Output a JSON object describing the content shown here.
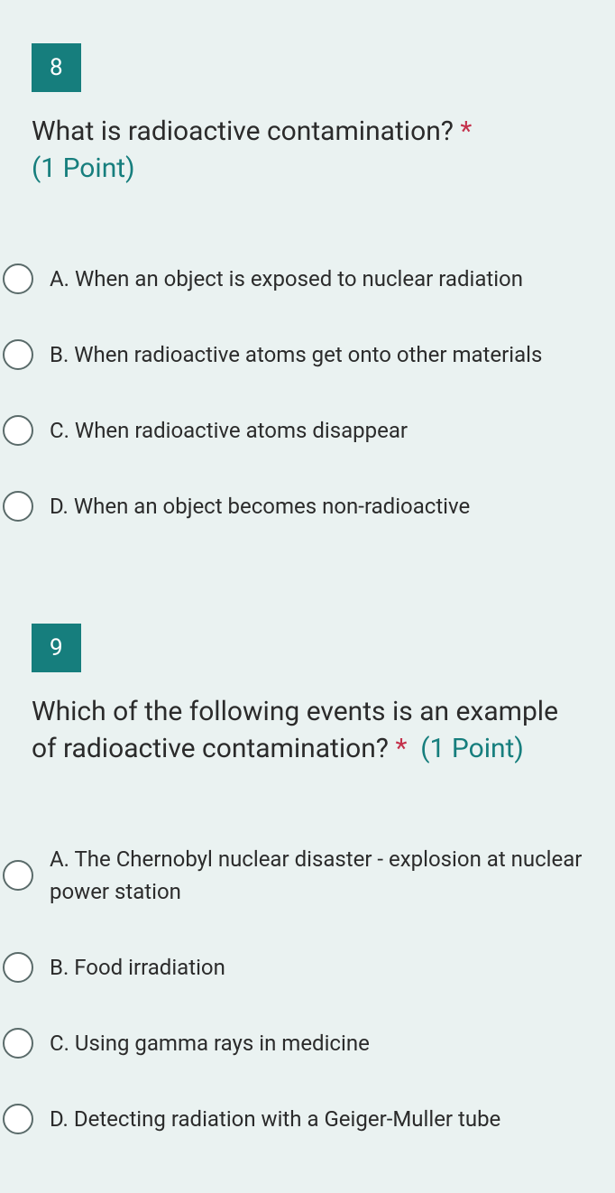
{
  "questions": [
    {
      "number": "8",
      "text": "What is radioactive contamination?",
      "required": "*",
      "points": "(1 Point)",
      "options": [
        "A. When an object is exposed to nuclear radiation",
        "B. When radioactive atoms get onto other materials",
        "C. When radioactive atoms disappear",
        "D. When an object becomes non-radioactive"
      ]
    },
    {
      "number": "9",
      "text": "Which of the following events is an example of radioactive contamination?",
      "required": "*",
      "points": "(1 Point)",
      "options": [
        "A. The Chernobyl nuclear disaster - explosion at nuclear power station",
        "B. Food irradiation",
        "C. Using gamma rays in medicine",
        "D. Detecting radiation with a Geiger-Muller tube"
      ]
    }
  ]
}
